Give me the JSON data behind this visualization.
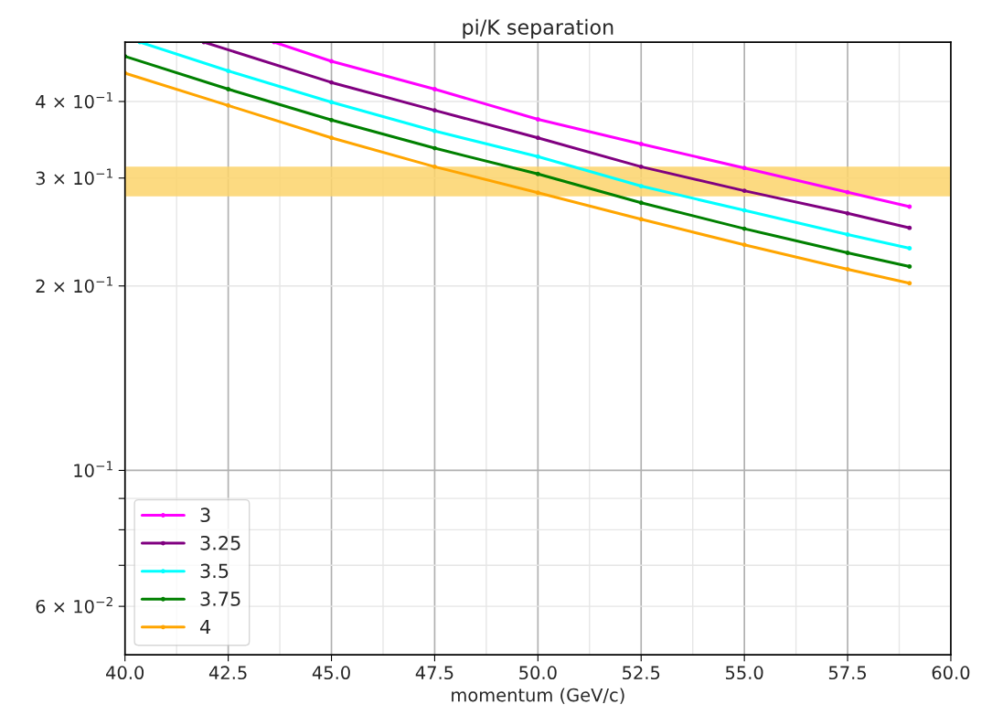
{
  "chart_data": {
    "type": "line",
    "title": "pi/K separation",
    "xlabel": "momentum (GeV/c)",
    "log": "y",
    "grid": true,
    "legend": "bottom left",
    "marker": "circle",
    "line_style": "solid",
    "xlim": [
      40,
      60
    ],
    "ylim": [
      0.05,
      0.5
    ],
    "xticks": [
      {
        "value": 40,
        "label": "40.0"
      },
      {
        "value": 42.5,
        "label": "42.5"
      },
      {
        "value": 45,
        "label": "45.0"
      },
      {
        "value": 47.5,
        "label": "47.5"
      },
      {
        "value": 50,
        "label": "50.0"
      },
      {
        "value": 52.5,
        "label": "52.5"
      },
      {
        "value": 55,
        "label": "55.0"
      },
      {
        "value": 57.5,
        "label": "57.5"
      },
      {
        "value": 60,
        "label": "60.0"
      }
    ],
    "yticks": [
      {
        "value": 0.06,
        "label": "6 × 10$^{−2}$"
      },
      {
        "value": 0.07,
        "label": null
      },
      {
        "value": 0.08,
        "label": null
      },
      {
        "value": 0.09,
        "label": null
      },
      {
        "value": 0.1,
        "label": "10$^{−1}$"
      },
      {
        "value": 0.2,
        "label": "2 × 10$^{−1}$"
      },
      {
        "value": 0.3,
        "label": "3 × 10$^{−1}$"
      },
      {
        "value": 0.4,
        "label": "4 × 10$^{−1}$"
      }
    ],
    "bands": [
      {
        "axis": "y",
        "from": 0.28,
        "to": 0.313,
        "color": "#fcd36b"
      }
    ],
    "series": [
      {
        "name": "3",
        "color": "#ff00ff",
        "x": [
          43.61,
          45,
          47.5,
          50,
          52.5,
          55,
          57.5,
          59
        ],
        "values": [
          0.5,
          0.4653,
          0.419,
          0.374,
          0.341,
          0.3116,
          0.2845,
          0.2694
        ]
      },
      {
        "name": "3.25",
        "color": "#800080",
        "x": [
          41.91,
          45,
          47.5,
          50,
          52.5,
          55,
          57.5,
          59
        ],
        "values": [
          0.5,
          0.4297,
          0.387,
          0.349,
          0.313,
          0.286,
          0.2627,
          0.2488
        ]
      },
      {
        "name": "3.5",
        "color": "#00ffff",
        "x": [
          40.36,
          42.5,
          45,
          47.5,
          50,
          52.5,
          55,
          57.5,
          59
        ],
        "values": [
          0.5,
          0.4487,
          0.399,
          0.358,
          0.3253,
          0.291,
          0.2657,
          0.2426,
          0.2304
        ]
      },
      {
        "name": "3.75",
        "color": "#008000",
        "x": [
          40,
          42.5,
          45,
          47.5,
          50,
          52.5,
          55,
          57.5,
          59
        ],
        "values": [
          0.474,
          0.419,
          0.373,
          0.3356,
          0.3046,
          0.2734,
          0.248,
          0.2265,
          0.2152
        ]
      },
      {
        "name": "4",
        "color": "#ffa500",
        "x": [
          40,
          42.5,
          45,
          47.5,
          50,
          52.5,
          55,
          57.5,
          59
        ],
        "values": [
          0.445,
          0.394,
          0.349,
          0.313,
          0.284,
          0.257,
          0.2334,
          0.213,
          0.2021
        ]
      }
    ]
  }
}
